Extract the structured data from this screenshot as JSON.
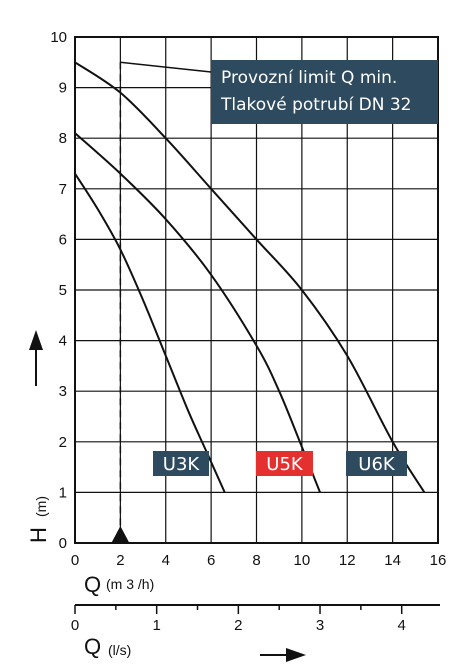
{
  "chart_data": {
    "type": "line",
    "xlabel_main": "Q",
    "xlabel_unit": "(m 3 /h)",
    "x2label_main": "Q",
    "x2label_unit": "(l/s)",
    "ylabel_main": "H",
    "ylabel_unit": "(m)",
    "xlim": [
      0,
      16
    ],
    "ylim": [
      0,
      10
    ],
    "x_ticks": [
      "0",
      "2",
      "4",
      "6",
      "8",
      "10",
      "12",
      "14",
      "16"
    ],
    "y_ticks": [
      "0",
      "1",
      "2",
      "3",
      "4",
      "5",
      "6",
      "7",
      "8",
      "9",
      "10"
    ],
    "x2_ticks": [
      "0",
      "1",
      "2",
      "3",
      "4"
    ],
    "grid": true,
    "min_flow_limit_q": 2,
    "annotation": {
      "line1": "Provozní  limit Q min.",
      "line2": "Tlakové potrubí DN 32"
    },
    "series": [
      {
        "name": "U3K",
        "color": "#2e4a5f",
        "x": [
          0,
          1,
          2,
          3,
          4,
          5,
          5.8,
          6.6
        ],
        "y": [
          7.3,
          6.6,
          5.8,
          4.8,
          3.7,
          2.6,
          1.8,
          1.0
        ]
      },
      {
        "name": "U5K",
        "color": "#e53030",
        "x": [
          0,
          2,
          4,
          6,
          8,
          9,
          10,
          10.8
        ],
        "y": [
          8.1,
          7.3,
          6.4,
          5.3,
          3.9,
          3.0,
          1.9,
          1.0
        ]
      },
      {
        "name": "U6K",
        "color": "#2e4a5f",
        "x": [
          0,
          2,
          4,
          6,
          8,
          10,
          12,
          14,
          15.4
        ],
        "y": [
          9.5,
          8.9,
          8.0,
          7.0,
          6.0,
          5.0,
          3.7,
          2.0,
          1.0
        ]
      }
    ]
  }
}
